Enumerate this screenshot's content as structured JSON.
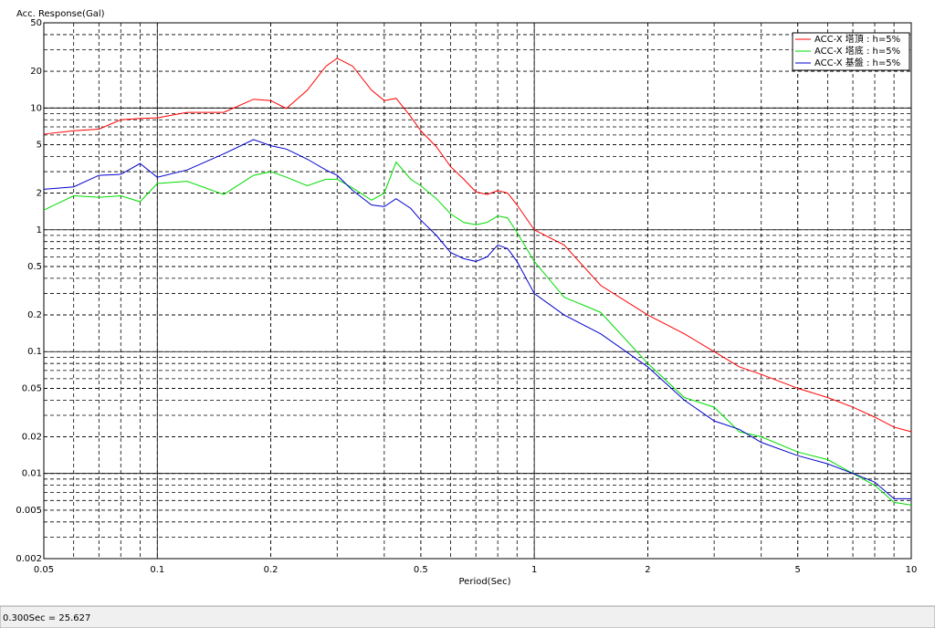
{
  "chart_data": {
    "type": "line",
    "title": "Acc. Response(Gal)",
    "x_label": "Period(Sec)",
    "x": [
      0.05,
      0.06,
      0.07,
      0.08,
      0.09,
      0.1,
      0.12,
      0.15,
      0.18,
      0.2,
      0.22,
      0.25,
      0.28,
      0.3,
      0.33,
      0.37,
      0.4,
      0.43,
      0.47,
      0.5,
      0.55,
      0.6,
      0.65,
      0.7,
      0.75,
      0.8,
      0.85,
      0.9,
      1,
      1.2,
      1.5,
      2,
      2.5,
      3,
      3.5,
      4,
      5,
      6,
      7,
      8,
      9,
      10
    ],
    "series": [
      {
        "name": "ACC-X 塔頂 : h=5%",
        "color": "#ff0000",
        "values": [
          6.1,
          6.5,
          6.7,
          8.0,
          8.2,
          8.3,
          9.2,
          9.2,
          11.8,
          11.5,
          9.9,
          14,
          22,
          25.6,
          22,
          14,
          11.5,
          12,
          8.5,
          6.5,
          4.8,
          3.3,
          2.6,
          2.05,
          1.95,
          2.1,
          2.0,
          1.6,
          1.0,
          0.75,
          0.35,
          0.2,
          0.14,
          0.1,
          0.075,
          0.065,
          0.05,
          0.042,
          0.035,
          0.029,
          0.024,
          0.022
        ]
      },
      {
        "name": "ACC-X 塔底 : h=5%",
        "color": "#00dd00",
        "values": [
          1.45,
          1.9,
          1.85,
          1.9,
          1.7,
          2.4,
          2.5,
          1.95,
          2.8,
          3.0,
          2.7,
          2.3,
          2.6,
          2.6,
          2.2,
          1.75,
          2.0,
          3.6,
          2.6,
          2.3,
          1.8,
          1.35,
          1.15,
          1.1,
          1.15,
          1.3,
          1.25,
          0.95,
          0.55,
          0.28,
          0.21,
          0.08,
          0.042,
          0.035,
          0.022,
          0.02,
          0.015,
          0.013,
          0.01,
          0.008,
          0.0058,
          0.0055
        ]
      },
      {
        "name": "ACC-X 基盤 : h=5%",
        "color": "#0000cc",
        "values": [
          2.15,
          2.25,
          2.8,
          2.85,
          3.5,
          2.7,
          3.1,
          4.2,
          5.5,
          4.9,
          4.6,
          3.8,
          3.1,
          2.8,
          2.1,
          1.6,
          1.55,
          1.8,
          1.5,
          1.2,
          0.9,
          0.65,
          0.58,
          0.55,
          0.6,
          0.75,
          0.7,
          0.55,
          0.3,
          0.2,
          0.14,
          0.075,
          0.04,
          0.027,
          0.023,
          0.018,
          0.014,
          0.012,
          0.01,
          0.0085,
          0.0062,
          0.0062
        ]
      }
    ],
    "xlim": [
      0.05,
      10
    ],
    "ylim": [
      0.002,
      50
    ],
    "xticks": [
      0.05,
      0.1,
      0.2,
      0.5,
      1,
      2,
      5,
      10
    ],
    "yticks": [
      0.002,
      0.005,
      0.01,
      0.02,
      0.05,
      0.1,
      0.2,
      0.5,
      1,
      2,
      5,
      10,
      20,
      50
    ],
    "xlog": true,
    "ylog": true,
    "grid": true,
    "minor_grid": true,
    "legend": "upper right"
  },
  "status_bar": "0.300Sec = 25.627"
}
